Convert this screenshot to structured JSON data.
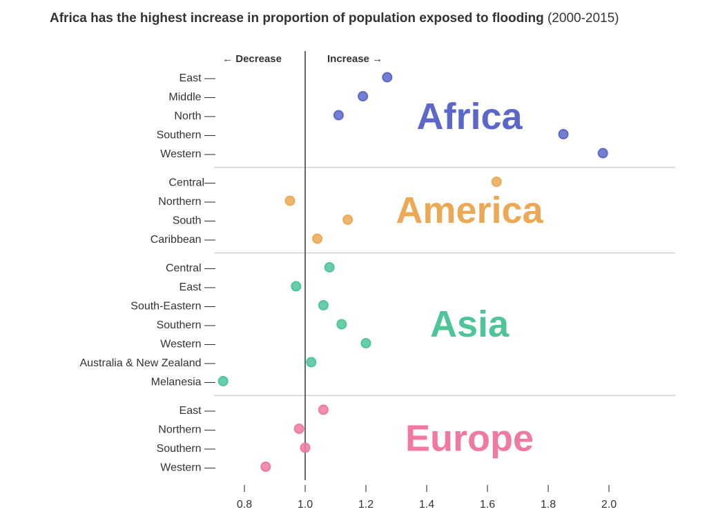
{
  "title": {
    "bold": "Africa has the highest increase in proportion of population exposed to flooding",
    "normal": " (2000-2015)"
  },
  "colors": {
    "Africa": "#5b68c9",
    "America": "#eba855",
    "Asia": "#4ec499",
    "Europe": "#f07a9f",
    "axis": "#666666",
    "separator": "#bbbbbb"
  },
  "chart_data": {
    "type": "scatter",
    "title": "Africa has the highest increase in proportion of population exposed to flooding (2000-2015)",
    "xlabel": "",
    "ylabel": "",
    "xlim": [
      0.7,
      2.2
    ],
    "reference_line": 1.0,
    "direction_labels": {
      "left": "Decrease",
      "right": "Increase"
    },
    "x_ticks": [
      0.8,
      1.0,
      1.2,
      1.4,
      1.6,
      1.8,
      2.0
    ],
    "x_tick_labels": [
      "0.8",
      "1.0",
      "1.2",
      "1.4",
      "1.6",
      "1.8",
      "2.0"
    ],
    "groups": [
      {
        "name": "Africa",
        "points": [
          {
            "label": "East —",
            "value": 1.27
          },
          {
            "label": "Middle —",
            "value": 1.19
          },
          {
            "label": "North —",
            "value": 1.11
          },
          {
            "label": "Southern —",
            "value": 1.85
          },
          {
            "label": "Western —",
            "value": 1.98
          }
        ]
      },
      {
        "name": "America",
        "points": [
          {
            "label": "Central—",
            "value": 1.63
          },
          {
            "label": "Northern —",
            "value": 0.95
          },
          {
            "label": "South —",
            "value": 1.14
          },
          {
            "label": "Caribbean —",
            "value": 1.04
          }
        ]
      },
      {
        "name": "Asia",
        "points": [
          {
            "label": "Central —",
            "value": 1.08
          },
          {
            "label": "East —",
            "value": 0.97
          },
          {
            "label": "South-Eastern —",
            "value": 1.06
          },
          {
            "label": "Southern —",
            "value": 1.12
          },
          {
            "label": "Western —",
            "value": 1.2
          },
          {
            "label": "Australia & New Zealand —",
            "value": 1.02
          },
          {
            "label": "Melanesia —",
            "value": 0.73
          }
        ]
      },
      {
        "name": "Europe",
        "points": [
          {
            "label": "East —",
            "value": 1.06
          },
          {
            "label": "Northern —",
            "value": 0.98
          },
          {
            "label": "Southern —",
            "value": 1.0
          },
          {
            "label": "Western —",
            "value": 0.87
          }
        ]
      }
    ]
  }
}
